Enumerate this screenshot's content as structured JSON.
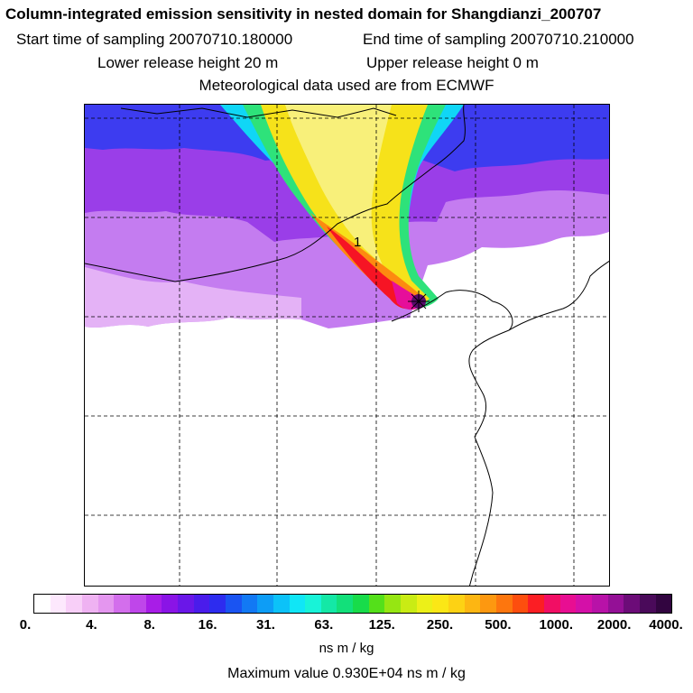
{
  "header": {
    "title": "Column-integrated emission sensitivity in nested domain for Shangdianzi_200707",
    "start_time": "Start time of sampling 20070710.180000",
    "end_time": "End time of sampling 20070710.210000",
    "lower_height": "Lower release height   20 m",
    "upper_height": "Upper release height    0 m",
    "met_source": "Meteorological data used are from ECMWF"
  },
  "map": {
    "release_marker_label": "1",
    "grid_lines": "dashed",
    "plume_direction": "north-west from release site"
  },
  "colorbar": {
    "tick_labels": [
      "0.",
      "4.",
      "8.",
      "16.",
      "31.",
      "63.",
      "125.",
      "250.",
      "500.",
      "1000.",
      "2000.",
      "4000."
    ],
    "colors": [
      "#ffffff",
      "#fde8fd",
      "#f8cff8",
      "#efb2f2",
      "#e496ef",
      "#d36eec",
      "#bf46ea",
      "#a81de7",
      "#8a14e6",
      "#6a17e8",
      "#4a1ceb",
      "#2d2cef",
      "#1a54f2",
      "#1279f4",
      "#0d9df6",
      "#0cc2f8",
      "#10e6f6",
      "#18f3d8",
      "#14e8a6",
      "#12e07a",
      "#18dc4a",
      "#54e01a",
      "#96e612",
      "#c9ec14",
      "#ecf018",
      "#fbe716",
      "#fdd214",
      "#fdb612",
      "#fd9810",
      "#fd760e",
      "#fd4e0e",
      "#fb1e24",
      "#f10e64",
      "#e80e92",
      "#d410a8",
      "#b812a8",
      "#941096",
      "#6c0c78",
      "#4a0a5a",
      "#320540"
    ],
    "units": "ns m / kg"
  },
  "max_value": "Maximum value  0.930E+04 ns m / kg"
}
